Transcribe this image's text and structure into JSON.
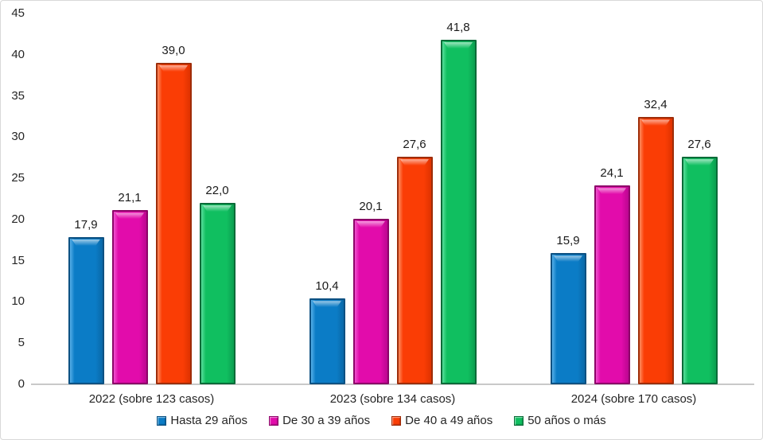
{
  "chart_data": {
    "type": "bar",
    "title": "",
    "xlabel": "",
    "ylabel": "",
    "categories": [
      "2022 (sobre 123 casos)",
      "2023 (sobre 134 casos)",
      "2024 (sobre 170 casos)"
    ],
    "series": [
      {
        "name": "Hasta 29 años",
        "values": [
          17.9,
          10.4,
          15.9
        ],
        "labels": [
          "17,9",
          "10,4",
          "15,9"
        ],
        "colors": {
          "fill": "#0B7CC6",
          "edge": "#0D5182",
          "light": "#55AEE8",
          "dark": "#0A69A8"
        }
      },
      {
        "name": "De 30 a 39 años",
        "values": [
          21.1,
          20.1,
          24.1
        ],
        "labels": [
          "21,1",
          "20,1",
          "24,1"
        ],
        "colors": {
          "fill": "#E20CAB",
          "edge": "#8C0568",
          "light": "#F052CF",
          "dark": "#BB0690"
        }
      },
      {
        "name": "De 40 a 49 años",
        "values": [
          39.0,
          27.6,
          32.4
        ],
        "labels": [
          "39,0",
          "27,6",
          "32,4"
        ],
        "colors": {
          "fill": "#FA3D05",
          "edge": "#9E2D09",
          "light": "#FF8C60",
          "dark": "#DE3200"
        }
      },
      {
        "name": "50 años o más",
        "values": [
          22.0,
          41.8,
          27.6
        ],
        "labels": [
          "22,0",
          "41,8",
          "27,6"
        ],
        "colors": {
          "fill": "#10BF60",
          "edge": "#0A6B38",
          "light": "#57DE9A",
          "dark": "#0C9E50"
        }
      }
    ],
    "ylim": [
      0,
      45
    ],
    "yticks": [
      0,
      5,
      10,
      15,
      20,
      25,
      30,
      35,
      40,
      45
    ],
    "grid": false,
    "legend_position": "bottom",
    "legend_labels": [
      "Hasta 29 años",
      "De 30 a 39 años",
      "De 40 a 49 años",
      "50 años o más"
    ]
  }
}
